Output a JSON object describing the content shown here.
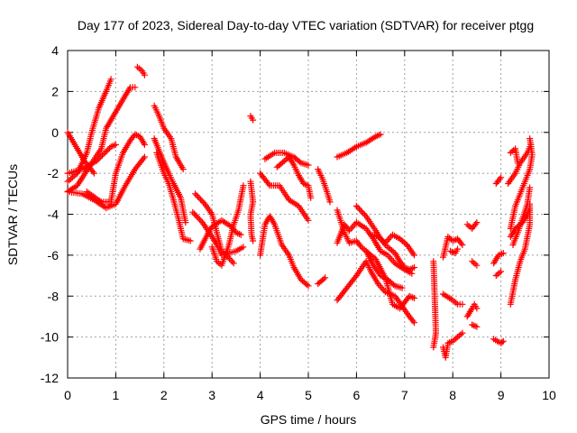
{
  "chart_data": {
    "type": "scatter",
    "title": "Day 177 of 2023, Sidereal Day-to-day VTEC variation (SDTVAR) for receiver ptgg",
    "xlabel": "GPS time / hours",
    "ylabel": "SDTVAR / TECUs",
    "xlim": [
      0,
      10
    ],
    "ylim": [
      -12,
      4
    ],
    "xticks": [
      0,
      1,
      2,
      3,
      4,
      5,
      6,
      7,
      8,
      9,
      10
    ],
    "yticks": [
      -12,
      -10,
      -8,
      -6,
      -4,
      -2,
      0,
      2,
      4
    ],
    "grid": true,
    "legend": "none",
    "marker": "+",
    "color": "#ff0000",
    "segments": [
      [
        [
          0.0,
          0.0
        ],
        [
          0.15,
          -0.6
        ],
        [
          0.35,
          -1.4
        ],
        [
          0.55,
          -2.0
        ]
      ],
      [
        [
          0.0,
          -2.0
        ],
        [
          0.3,
          -1.8
        ],
        [
          0.6,
          -1.4
        ],
        [
          0.9,
          -0.7
        ],
        [
          1.0,
          -0.6
        ]
      ],
      [
        [
          0.0,
          -2.4
        ],
        [
          0.2,
          -2.0
        ],
        [
          0.4,
          -1.0
        ],
        [
          0.5,
          0.0
        ],
        [
          0.65,
          1.2
        ],
        [
          0.8,
          2.0
        ],
        [
          0.9,
          2.6
        ]
      ],
      [
        [
          0.0,
          -2.9
        ],
        [
          0.2,
          -2.6
        ],
        [
          0.5,
          -1.5
        ],
        [
          0.7,
          -0.8
        ],
        [
          0.8,
          0.2
        ],
        [
          0.9,
          0.6
        ],
        [
          1.0,
          1.0
        ],
        [
          1.2,
          1.8
        ],
        [
          1.3,
          2.2
        ],
        [
          1.4,
          2.2
        ]
      ],
      [
        [
          0.0,
          -2.9
        ],
        [
          0.3,
          -3.0
        ],
        [
          0.55,
          -3.3
        ],
        [
          0.8,
          -3.7
        ],
        [
          1.0,
          -3.5
        ],
        [
          1.2,
          -2.6
        ],
        [
          1.4,
          -1.8
        ],
        [
          1.6,
          -1.2
        ]
      ],
      [
        [
          0.4,
          -2.9
        ],
        [
          0.7,
          -3.4
        ],
        [
          0.9,
          -3.4
        ],
        [
          1.0,
          -2.0
        ],
        [
          1.15,
          -1.0
        ],
        [
          1.3,
          -0.4
        ],
        [
          1.4,
          -0.1
        ],
        [
          1.5,
          -0.2
        ],
        [
          1.6,
          -0.6
        ]
      ],
      [
        [
          1.45,
          3.2
        ],
        [
          1.55,
          3.0
        ],
        [
          1.6,
          2.8
        ]
      ],
      [
        [
          1.8,
          1.3
        ],
        [
          1.9,
          0.8
        ],
        [
          2.0,
          0.2
        ],
        [
          2.15,
          -0.3
        ],
        [
          2.25,
          -1.2
        ],
        [
          2.4,
          -1.8
        ]
      ],
      [
        [
          1.8,
          -0.3
        ],
        [
          1.95,
          -1.2
        ],
        [
          2.1,
          -2.0
        ],
        [
          2.2,
          -2.5
        ],
        [
          2.35,
          -3.2
        ],
        [
          2.45,
          -4.4
        ]
      ],
      [
        [
          1.85,
          -1.0
        ],
        [
          2.0,
          -2.0
        ],
        [
          2.1,
          -2.5
        ],
        [
          2.2,
          -3.3
        ],
        [
          2.3,
          -4.2
        ],
        [
          2.4,
          -5.2
        ],
        [
          2.55,
          -5.3
        ]
      ],
      [
        [
          2.65,
          -3.0
        ],
        [
          2.85,
          -3.5
        ],
        [
          3.0,
          -4.0
        ],
        [
          3.1,
          -4.9
        ],
        [
          3.2,
          -5.8
        ],
        [
          3.3,
          -6.0
        ],
        [
          3.45,
          -6.4
        ]
      ],
      [
        [
          2.6,
          -3.9
        ],
        [
          2.8,
          -4.4
        ],
        [
          3.0,
          -5.1
        ],
        [
          3.1,
          -5.5
        ],
        [
          3.2,
          -6.0
        ],
        [
          3.5,
          -5.8
        ],
        [
          3.65,
          -5.6
        ]
      ],
      [
        [
          2.75,
          -5.7
        ],
        [
          2.9,
          -5.0
        ],
        [
          3.0,
          -4.6
        ],
        [
          3.2,
          -4.3
        ],
        [
          3.4,
          -4.6
        ],
        [
          3.5,
          -4.9
        ],
        [
          3.6,
          -5.0
        ]
      ],
      [
        [
          3.0,
          -5.6
        ],
        [
          3.1,
          -6.3
        ],
        [
          3.2,
          -6.5
        ],
        [
          3.35,
          -5.5
        ],
        [
          3.45,
          -4.5
        ],
        [
          3.55,
          -3.8
        ],
        [
          3.65,
          -2.6
        ]
      ],
      [
        [
          3.8,
          0.8
        ],
        [
          3.85,
          0.6
        ]
      ],
      [
        [
          3.8,
          -2.4
        ],
        [
          3.82,
          -2.8
        ],
        [
          3.85,
          -3.4
        ],
        [
          3.8,
          -4.0
        ],
        [
          3.82,
          -5.0
        ],
        [
          3.85,
          -5.3
        ]
      ],
      [
        [
          4.0,
          -6.0
        ],
        [
          4.1,
          -4.5
        ],
        [
          4.2,
          -4.1
        ],
        [
          4.3,
          -4.5
        ],
        [
          4.45,
          -5.5
        ],
        [
          4.6,
          -6.0
        ],
        [
          4.7,
          -6.6
        ],
        [
          4.85,
          -7.2
        ],
        [
          5.0,
          -7.5
        ]
      ],
      [
        [
          4.0,
          -2.0
        ],
        [
          4.2,
          -2.6
        ],
        [
          4.4,
          -2.6
        ],
        [
          4.6,
          -3.3
        ],
        [
          4.8,
          -3.6
        ],
        [
          5.0,
          -4.3
        ]
      ],
      [
        [
          4.1,
          -1.3
        ],
        [
          4.3,
          -1.0
        ],
        [
          4.5,
          -1.0
        ],
        [
          4.7,
          -1.2
        ],
        [
          4.85,
          -1.5
        ],
        [
          5.0,
          -1.6
        ]
      ],
      [
        [
          4.35,
          -1.7
        ],
        [
          4.5,
          -1.4
        ],
        [
          4.6,
          -1.2
        ],
        [
          4.7,
          -1.6
        ],
        [
          4.8,
          -2.1
        ],
        [
          4.9,
          -2.5
        ],
        [
          5.0,
          -2.6
        ],
        [
          5.05,
          -3.2
        ]
      ],
      [
        [
          5.2,
          -1.8
        ],
        [
          5.3,
          -2.3
        ],
        [
          5.4,
          -3.0
        ],
        [
          5.45,
          -3.4
        ]
      ],
      [
        [
          5.2,
          -7.4
        ],
        [
          5.35,
          -7.1
        ]
      ],
      [
        [
          5.6,
          -1.2
        ],
        [
          5.8,
          -1.0
        ],
        [
          6.0,
          -0.7
        ],
        [
          6.2,
          -0.5
        ],
        [
          6.4,
          -0.2
        ],
        [
          6.5,
          -0.1
        ]
      ],
      [
        [
          5.6,
          -3.8
        ],
        [
          5.75,
          -4.9
        ],
        [
          5.85,
          -5.4
        ],
        [
          6.0,
          -5.3
        ],
        [
          6.1,
          -5.6
        ],
        [
          6.2,
          -5.8
        ],
        [
          6.4,
          -6.2
        ],
        [
          6.6,
          -7.1
        ],
        [
          6.75,
          -8.4
        ],
        [
          6.9,
          -8.6
        ],
        [
          7.1,
          -8.0
        ],
        [
          7.2,
          -8.1
        ]
      ],
      [
        [
          5.6,
          -5.4
        ],
        [
          5.75,
          -4.5
        ],
        [
          5.85,
          -4.8
        ],
        [
          6.0,
          -4.4
        ],
        [
          6.2,
          -4.7
        ],
        [
          6.35,
          -5.2
        ],
        [
          6.5,
          -5.8
        ],
        [
          6.65,
          -6.0
        ],
        [
          6.8,
          -6.4
        ],
        [
          7.0,
          -6.7
        ],
        [
          7.15,
          -6.9
        ]
      ],
      [
        [
          5.6,
          -8.2
        ],
        [
          5.8,
          -7.6
        ],
        [
          6.0,
          -7.0
        ],
        [
          6.2,
          -6.3
        ],
        [
          6.3,
          -6.8
        ],
        [
          6.45,
          -7.4
        ],
        [
          6.6,
          -7.8
        ],
        [
          6.8,
          -8.0
        ],
        [
          6.95,
          -8.5
        ],
        [
          7.1,
          -9.0
        ],
        [
          7.2,
          -9.3
        ]
      ],
      [
        [
          6.2,
          -5.8
        ],
        [
          6.35,
          -6.5
        ],
        [
          6.5,
          -7.0
        ],
        [
          6.65,
          -7.2
        ],
        [
          6.8,
          -7.5
        ],
        [
          6.95,
          -7.6
        ]
      ],
      [
        [
          6.0,
          -3.6
        ],
        [
          6.2,
          -4.1
        ],
        [
          6.4,
          -4.8
        ],
        [
          6.5,
          -5.2
        ],
        [
          6.6,
          -5.5
        ],
        [
          6.8,
          -5.9
        ],
        [
          6.9,
          -6.3
        ],
        [
          7.0,
          -6.6
        ],
        [
          7.1,
          -6.7
        ],
        [
          7.2,
          -6.6
        ]
      ],
      [
        [
          6.3,
          -5.0
        ],
        [
          6.45,
          -5.1
        ],
        [
          6.6,
          -5.4
        ],
        [
          6.75,
          -5.0
        ],
        [
          6.9,
          -5.2
        ],
        [
          7.05,
          -5.5
        ],
        [
          7.2,
          -6.0
        ]
      ],
      [
        [
          7.6,
          -6.3
        ],
        [
          7.65,
          -9.8
        ],
        [
          7.6,
          -10.5
        ]
      ],
      [
        [
          7.8,
          -6.1
        ],
        [
          7.9,
          -5.1
        ],
        [
          8.0,
          -5.3
        ],
        [
          8.1,
          -5.2
        ],
        [
          8.2,
          -5.5
        ]
      ],
      [
        [
          7.8,
          -10.5
        ],
        [
          7.85,
          -11.0
        ],
        [
          7.9,
          -10.3
        ],
        [
          8.0,
          -10.2
        ],
        [
          8.1,
          -10.0
        ],
        [
          8.2,
          -9.8
        ]
      ],
      [
        [
          7.8,
          -7.9
        ],
        [
          8.0,
          -8.2
        ],
        [
          8.1,
          -8.4
        ],
        [
          8.2,
          -8.4
        ]
      ],
      [
        [
          7.95,
          -5.8
        ],
        [
          8.05,
          -5.9
        ],
        [
          8.1,
          -5.7
        ]
      ],
      [
        [
          8.3,
          -4.5
        ],
        [
          8.4,
          -4.7
        ],
        [
          8.5,
          -4.4
        ]
      ],
      [
        [
          8.3,
          -9.0
        ],
        [
          8.4,
          -8.6
        ],
        [
          8.45,
          -8.4
        ],
        [
          8.5,
          -8.6
        ]
      ],
      [
        [
          8.4,
          -6.3
        ],
        [
          8.5,
          -6.5
        ]
      ],
      [
        [
          8.4,
          -9.4
        ],
        [
          8.5,
          -9.5
        ]
      ],
      [
        [
          8.85,
          -6.4
        ],
        [
          8.95,
          -6.0
        ],
        [
          9.05,
          -5.9
        ]
      ],
      [
        [
          8.85,
          -10.1
        ],
        [
          9.0,
          -10.3
        ],
        [
          9.05,
          -10.2
        ]
      ],
      [
        [
          8.9,
          -2.5
        ],
        [
          9.0,
          -2.2
        ]
      ],
      [
        [
          8.9,
          -7.0
        ],
        [
          9.0,
          -6.8
        ]
      ],
      [
        [
          9.2,
          -1.0
        ],
        [
          9.3,
          -0.8
        ],
        [
          9.35,
          -1.5
        ]
      ],
      [
        [
          9.2,
          -4.7
        ],
        [
          9.3,
          -3.6
        ],
        [
          9.4,
          -3.0
        ],
        [
          9.5,
          -2.4
        ],
        [
          9.6,
          -1.8
        ],
        [
          9.65,
          -1.1
        ],
        [
          9.6,
          -0.3
        ]
      ],
      [
        [
          9.15,
          -2.5
        ],
        [
          9.3,
          -2.0
        ],
        [
          9.4,
          -1.5
        ],
        [
          9.55,
          -1.0
        ],
        [
          9.62,
          -0.6
        ]
      ],
      [
        [
          9.2,
          -8.4
        ],
        [
          9.3,
          -7.2
        ],
        [
          9.4,
          -6.3
        ],
        [
          9.5,
          -5.7
        ],
        [
          9.6,
          -4.5
        ],
        [
          9.6,
          -3.5
        ]
      ],
      [
        [
          9.2,
          -5.1
        ],
        [
          9.3,
          -4.7
        ],
        [
          9.45,
          -4.4
        ],
        [
          9.55,
          -4.0
        ],
        [
          9.6,
          -3.7
        ]
      ],
      [
        [
          9.25,
          -5.5
        ],
        [
          9.35,
          -4.9
        ],
        [
          9.45,
          -4.2
        ],
        [
          9.55,
          -3.5
        ],
        [
          9.6,
          -2.7
        ]
      ]
    ]
  }
}
